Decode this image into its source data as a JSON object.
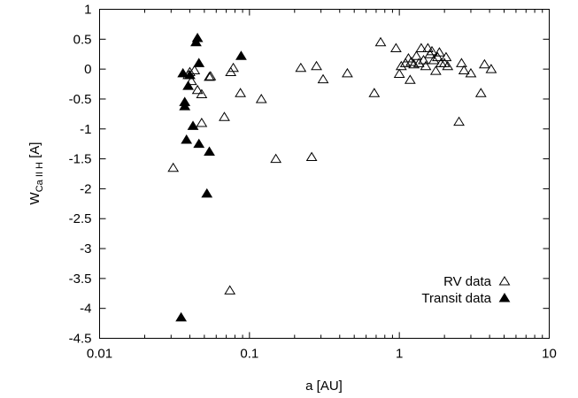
{
  "chart_data": {
    "type": "scatter",
    "xscale": "log",
    "xlim": [
      0.01,
      10
    ],
    "ylim": [
      -4.5,
      1
    ],
    "xticks": [
      "0.01",
      "0.1",
      "1",
      "10"
    ],
    "yticks": [
      "1",
      "0.5",
      "0",
      "-0.5",
      "-1",
      "-1.5",
      "-2",
      "-2.5",
      "-3",
      "-3.5",
      "-4",
      "-4.5"
    ],
    "xlabel": "a [AU]",
    "ylabel": {
      "main": "W",
      "subscript": "Ca II H",
      "unit": " [A]"
    },
    "legend_position": "bottom-right",
    "series": [
      {
        "name": "RV data",
        "marker": "open-triangle",
        "points": [
          [
            0.031,
            -1.65
          ],
          [
            0.039,
            -0.1
          ],
          [
            0.04,
            -0.05
          ],
          [
            0.041,
            -0.2
          ],
          [
            0.043,
            -0.02
          ],
          [
            0.045,
            -0.35
          ],
          [
            0.048,
            -0.42
          ],
          [
            0.048,
            -0.9
          ],
          [
            0.054,
            -0.13
          ],
          [
            0.055,
            -0.12
          ],
          [
            0.068,
            -0.8
          ],
          [
            0.075,
            -0.05
          ],
          [
            0.078,
            0.02
          ],
          [
            0.087,
            -0.4
          ],
          [
            0.074,
            -3.7
          ],
          [
            0.12,
            -0.5
          ],
          [
            0.15,
            -1.5
          ],
          [
            0.22,
            0.02
          ],
          [
            0.26,
            -1.47
          ],
          [
            0.28,
            0.05
          ],
          [
            0.31,
            -0.17
          ],
          [
            0.45,
            -0.07
          ],
          [
            0.68,
            -0.4
          ],
          [
            0.75,
            0.45
          ],
          [
            0.95,
            0.35
          ],
          [
            1.0,
            -0.08
          ],
          [
            1.03,
            0.05
          ],
          [
            1.1,
            0.1
          ],
          [
            1.15,
            0.18
          ],
          [
            1.18,
            -0.18
          ],
          [
            1.2,
            0.12
          ],
          [
            1.25,
            0.08
          ],
          [
            1.3,
            0.22
          ],
          [
            1.35,
            0.1
          ],
          [
            1.4,
            0.35
          ],
          [
            1.45,
            0.15
          ],
          [
            1.5,
            0.05
          ],
          [
            1.55,
            0.35
          ],
          [
            1.6,
            0.25
          ],
          [
            1.65,
            0.3
          ],
          [
            1.7,
            0.15
          ],
          [
            1.75,
            -0.03
          ],
          [
            1.8,
            0.2
          ],
          [
            1.85,
            0.28
          ],
          [
            1.9,
            0.1
          ],
          [
            2.0,
            0.1
          ],
          [
            2.05,
            0.2
          ],
          [
            2.1,
            0.05
          ],
          [
            2.5,
            -0.88
          ],
          [
            2.6,
            0.1
          ],
          [
            2.7,
            -0.02
          ],
          [
            3.0,
            -0.07
          ],
          [
            3.5,
            -0.4
          ],
          [
            3.7,
            0.08
          ],
          [
            4.1,
            0.0
          ]
        ]
      },
      {
        "name": "Transit data",
        "marker": "filled-triangle",
        "points": [
          [
            0.035,
            -4.15
          ],
          [
            0.036,
            -0.07
          ],
          [
            0.037,
            -0.55
          ],
          [
            0.037,
            -0.62
          ],
          [
            0.038,
            -1.18
          ],
          [
            0.039,
            -0.28
          ],
          [
            0.04,
            -0.1
          ],
          [
            0.042,
            -0.95
          ],
          [
            0.044,
            0.45
          ],
          [
            0.045,
            0.52
          ],
          [
            0.046,
            0.1
          ],
          [
            0.046,
            -1.25
          ],
          [
            0.052,
            -2.08
          ],
          [
            0.054,
            -1.38
          ],
          [
            0.088,
            0.22
          ]
        ]
      }
    ]
  }
}
